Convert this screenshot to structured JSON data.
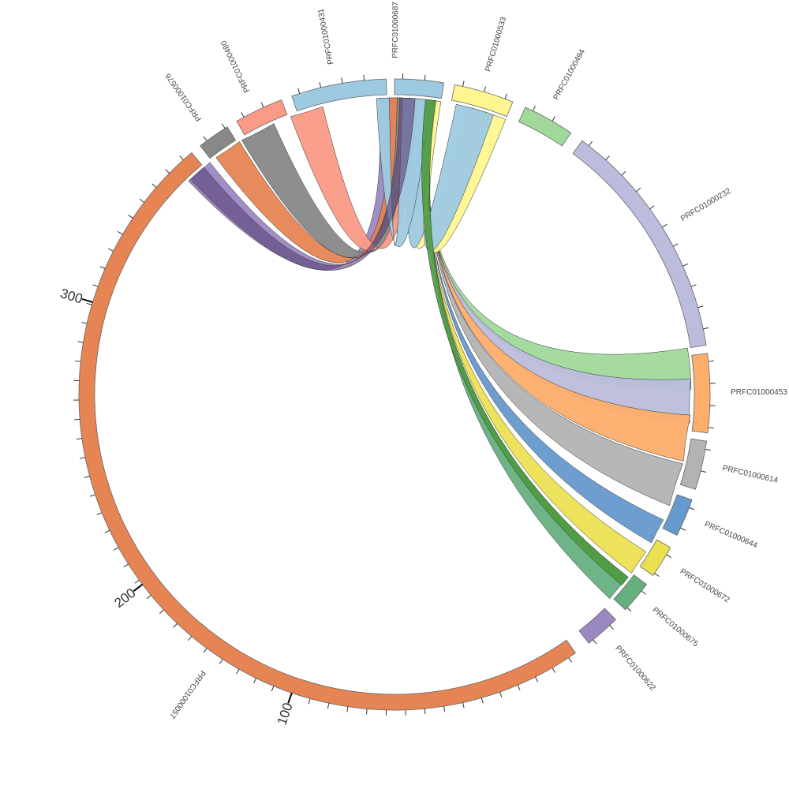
{
  "diagram": {
    "type": "chord",
    "segments": [
      {
        "id": "PRFC01000687",
        "color": "#9ecae1"
      },
      {
        "id": "PRFC01000533",
        "color": "#fff68f"
      },
      {
        "id": "PRFC01000494",
        "color": "#a1d99b"
      },
      {
        "id": "PRFC01000232",
        "color": "#bcbddc"
      },
      {
        "id": "PRFC01000453",
        "color": "#fdae6b"
      },
      {
        "id": "PRFC01000614",
        "color": "#b3b3b3"
      },
      {
        "id": "PRFC01000644",
        "color": "#6699cc"
      },
      {
        "id": "PRFC01000672",
        "color": "#ebe052"
      },
      {
        "id": "PRFC01000675",
        "color": "#66b07f"
      },
      {
        "id": "PRFC01000622",
        "color": "#9a89c1"
      },
      {
        "id": "PRFC01000057",
        "color": "#e68453"
      },
      {
        "id": "PRFC01000576",
        "color": "#888888"
      },
      {
        "id": "PRFC01000480",
        "color": "#fb9a87"
      },
      {
        "id": "PRFC01000431",
        "color": "#9ecae1"
      }
    ],
    "axis_labels": [
      "100",
      "200",
      "300"
    ],
    "hub_color": "#4e9a3e"
  }
}
